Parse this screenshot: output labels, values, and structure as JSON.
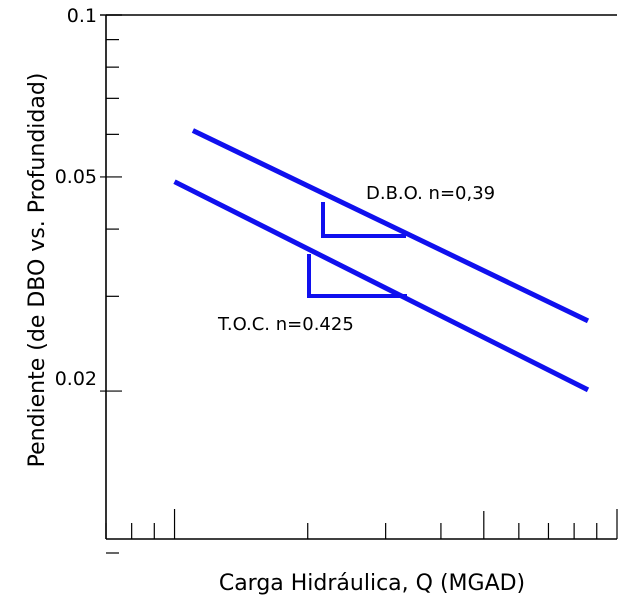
{
  "chart_data": {
    "type": "line",
    "title": "",
    "xlabel": "Carga  Hidráulica, Q (MGAD)",
    "ylabel": "Pendiente (de DBO vs. Profundidad)",
    "yscale": "log",
    "xscale": "log",
    "ylim": [
      0.01,
      0.1
    ],
    "xlim": [
      0.7,
      10
    ],
    "y_tick_labels": [
      {
        "value": 0.1,
        "label": "0.1"
      },
      {
        "value": 0.05,
        "label": "0.05"
      },
      {
        "value": 0.02,
        "label": "0.02"
      }
    ],
    "grid": false,
    "series": [
      {
        "color": "#1010ee",
        "x": [
          1.1,
          8.6
        ],
        "y": [
          0.061,
          0.027
        ],
        "annotation": "D.B.O. n=0,39"
      },
      {
        "color": "#1010ee",
        "x": [
          1.0,
          8.6
        ],
        "y": [
          0.049,
          0.0201
        ],
        "annotation": "T.O.C. n=0.425"
      }
    ]
  }
}
